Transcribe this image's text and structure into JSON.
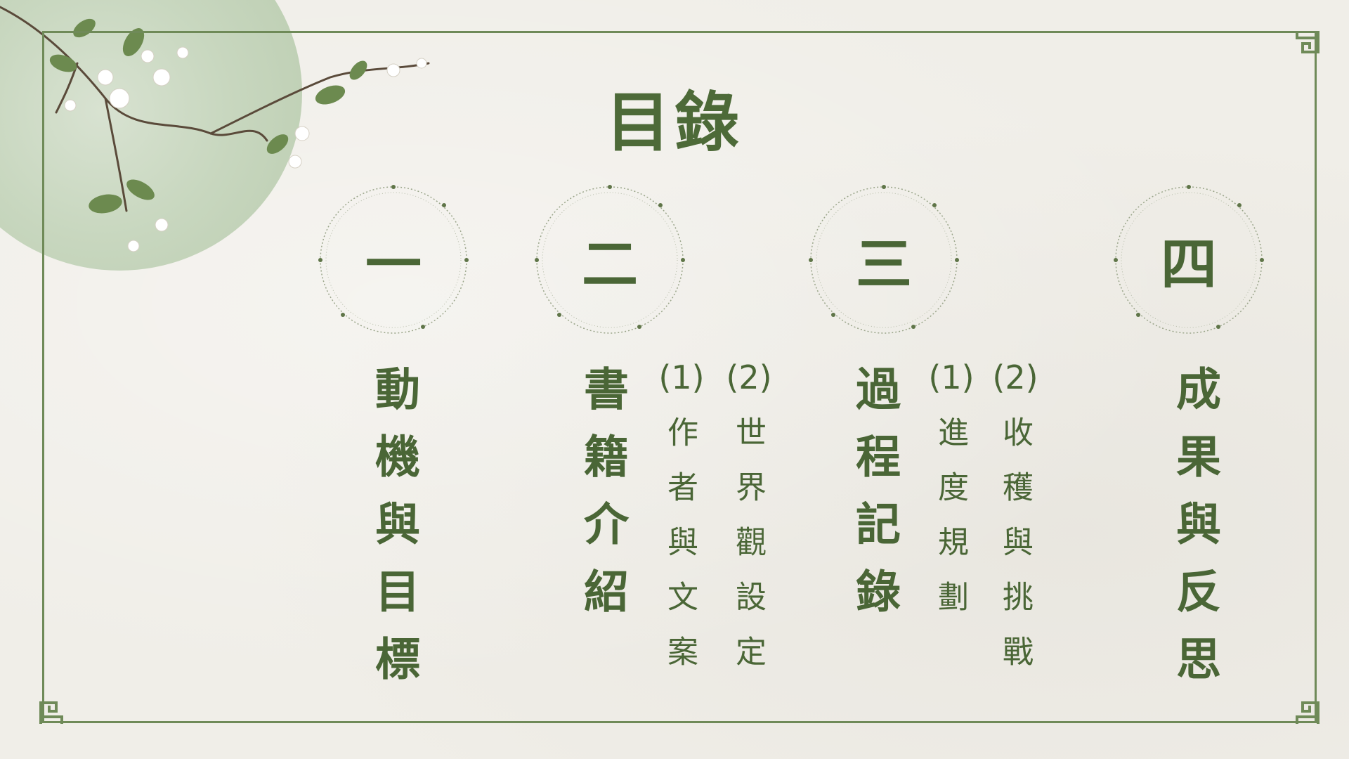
{
  "title": "目錄",
  "sections": [
    {
      "numeral": "一",
      "heading": "動機與目標",
      "subs": []
    },
    {
      "numeral": "二",
      "heading": "書籍介紹",
      "subs": [
        {
          "num": "(1)",
          "text": "作者與文案"
        },
        {
          "num": "(2)",
          "text": "世界觀設定"
        }
      ]
    },
    {
      "numeral": "三",
      "heading": "過程記錄",
      "subs": [
        {
          "num": "(1)",
          "text": "進度規劃"
        },
        {
          "num": "(2)",
          "text": "收穫與挑戰"
        }
      ]
    },
    {
      "numeral": "四",
      "heading": "成果與反思",
      "subs": []
    }
  ],
  "colors": {
    "accent": "#4a6636",
    "frame": "#6f8a58",
    "paper": "#f0eee8",
    "moon": "#c8d7bf"
  }
}
